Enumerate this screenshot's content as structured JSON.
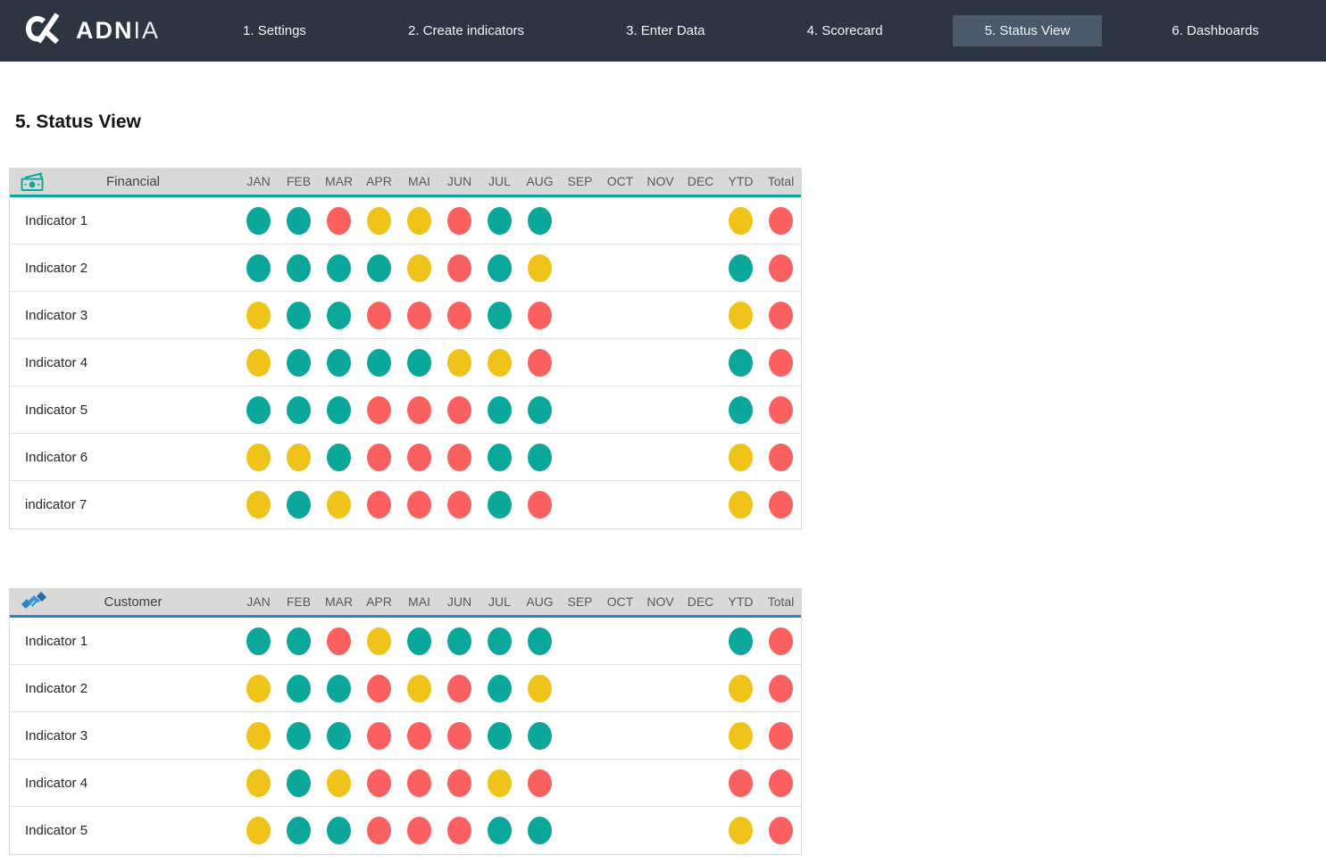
{
  "nav": {
    "brand_bold": "ADN",
    "brand_light": "IA",
    "items": [
      {
        "label": "1. Settings",
        "active": false
      },
      {
        "label": "2. Create indicators",
        "active": false
      },
      {
        "label": "3. Enter Data",
        "active": false
      },
      {
        "label": "4. Scorecard",
        "active": false
      },
      {
        "label": "5. Status View",
        "active": true
      },
      {
        "label": "6. Dashboards",
        "active": false
      }
    ]
  },
  "page_title": "5. Status View",
  "months": [
    "JAN",
    "FEB",
    "MAR",
    "APR",
    "MAI",
    "JUN",
    "JUL",
    "AUG",
    "SEP",
    "OCT",
    "NOV",
    "DEC",
    "YTD",
    "Total"
  ],
  "status_colors": {
    "teal": "#0ba79b",
    "yellow": "#efc319",
    "red": "#f9605f"
  },
  "sections": [
    {
      "title": "Financial",
      "name": "financial-status-table",
      "icon": "money-icon",
      "accent": "#0ba79b",
      "rows": [
        {
          "label": "Indicator 1",
          "statuses": [
            "teal",
            "teal",
            "red",
            "yellow",
            "yellow",
            "red",
            "teal",
            "teal",
            "",
            "",
            "",
            "",
            "yellow",
            "red"
          ]
        },
        {
          "label": "Indicator 2",
          "statuses": [
            "teal",
            "teal",
            "teal",
            "teal",
            "yellow",
            "red",
            "teal",
            "yellow",
            "",
            "",
            "",
            "",
            "teal",
            "red"
          ]
        },
        {
          "label": "Indicator 3",
          "statuses": [
            "yellow",
            "teal",
            "teal",
            "red",
            "red",
            "red",
            "teal",
            "red",
            "",
            "",
            "",
            "",
            "yellow",
            "red"
          ]
        },
        {
          "label": "Indicator 4",
          "statuses": [
            "yellow",
            "teal",
            "teal",
            "teal",
            "teal",
            "yellow",
            "yellow",
            "red",
            "",
            "",
            "",
            "",
            "teal",
            "red"
          ]
        },
        {
          "label": "Indicator 5",
          "statuses": [
            "teal",
            "teal",
            "teal",
            "red",
            "red",
            "red",
            "teal",
            "teal",
            "",
            "",
            "",
            "",
            "teal",
            "red"
          ]
        },
        {
          "label": "Indicator 6",
          "statuses": [
            "yellow",
            "yellow",
            "teal",
            "red",
            "red",
            "red",
            "teal",
            "teal",
            "",
            "",
            "",
            "",
            "yellow",
            "red"
          ]
        },
        {
          "label": "indicator 7",
          "statuses": [
            "yellow",
            "teal",
            "yellow",
            "red",
            "red",
            "red",
            "teal",
            "red",
            "",
            "",
            "",
            "",
            "yellow",
            "red"
          ]
        }
      ]
    },
    {
      "title": "Customer",
      "name": "customer-status-table",
      "icon": "handshake-icon",
      "accent": "#2d83bf",
      "rows": [
        {
          "label": "Indicator 1",
          "statuses": [
            "teal",
            "teal",
            "red",
            "yellow",
            "teal",
            "teal",
            "teal",
            "teal",
            "",
            "",
            "",
            "",
            "teal",
            "red"
          ]
        },
        {
          "label": "Indicator 2",
          "statuses": [
            "yellow",
            "teal",
            "teal",
            "red",
            "yellow",
            "red",
            "teal",
            "yellow",
            "",
            "",
            "",
            "",
            "yellow",
            "red"
          ]
        },
        {
          "label": "Indicator 3",
          "statuses": [
            "yellow",
            "teal",
            "teal",
            "red",
            "red",
            "red",
            "teal",
            "teal",
            "",
            "",
            "",
            "",
            "yellow",
            "red"
          ]
        },
        {
          "label": "Indicator 4",
          "statuses": [
            "yellow",
            "teal",
            "yellow",
            "red",
            "red",
            "red",
            "yellow",
            "red",
            "",
            "",
            "",
            "",
            "red",
            "red"
          ]
        },
        {
          "label": "Indicator 5",
          "statuses": [
            "yellow",
            "teal",
            "teal",
            "red",
            "red",
            "red",
            "teal",
            "teal",
            "",
            "",
            "",
            "",
            "yellow",
            "red"
          ]
        }
      ]
    }
  ]
}
